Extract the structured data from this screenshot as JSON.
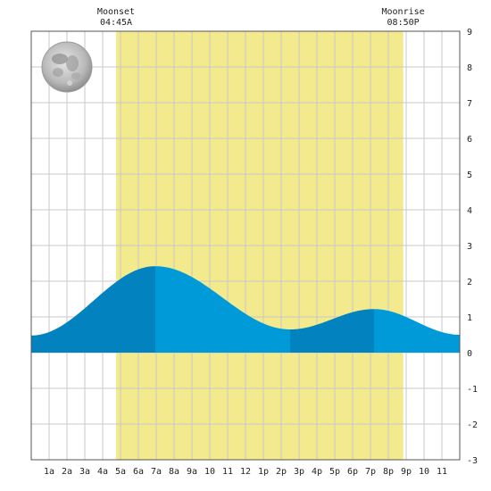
{
  "chart_data": {
    "type": "area",
    "title": "",
    "xlabel": "",
    "ylabel": "",
    "xlim": [
      0,
      24
    ],
    "ylim": [
      -3,
      9
    ],
    "grid": true,
    "x_tick_labels": [
      "1a",
      "2a",
      "3a",
      "4a",
      "5a",
      "6a",
      "7a",
      "8a",
      "9a",
      "10",
      "11",
      "12",
      "1p",
      "2p",
      "3p",
      "4p",
      "5p",
      "6p",
      "7p",
      "8p",
      "9p",
      "10",
      "11"
    ],
    "y_ticks": [
      -3,
      -2,
      -1,
      0,
      1,
      2,
      3,
      4,
      5,
      6,
      7,
      8,
      9
    ],
    "moonset": {
      "label": "Moonset",
      "time": "04:45A",
      "hour": 4.75
    },
    "moonrise": {
      "label": "Moonrise",
      "time": "08:50P",
      "hour": 20.83
    },
    "moon_phase": "full-moon-icon",
    "tide_extremes": [
      {
        "hour": 0.0,
        "height": 0.48
      },
      {
        "hour": 6.95,
        "height": 2.42
      },
      {
        "hour": 14.5,
        "height": 0.65
      },
      {
        "hour": 19.2,
        "height": 1.22
      },
      {
        "hour": 24.0,
        "height": 0.5
      }
    ],
    "split_hours": [
      6.95,
      14.5,
      19.2
    ],
    "colors": {
      "daylight": "#f2ea8c",
      "tide_dark": "#0282bf",
      "tide_light": "#009ad9",
      "grid": "#c8c8c8",
      "axis": "#555555"
    }
  }
}
